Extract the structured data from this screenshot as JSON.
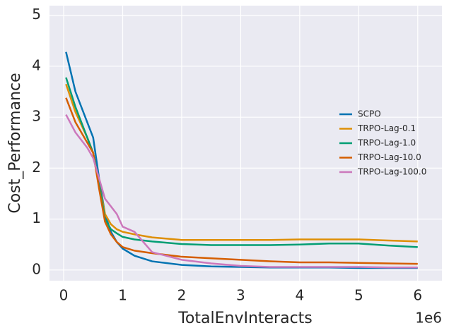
{
  "chart_data": {
    "type": "line",
    "xlabel": "TotalEnvInteracts",
    "ylabel": "Cost_Performance",
    "x_offset_label": "1e6",
    "x": [
      0.04,
      0.2,
      0.4,
      0.5,
      0.6,
      0.7,
      0.8,
      0.9,
      1.0,
      1.2,
      1.5,
      2,
      2.5,
      3,
      3.5,
      4,
      4.5,
      5,
      5.5,
      6
    ],
    "series": [
      {
        "name": "SCPO",
        "color": "#0173b2",
        "values": [
          4.28,
          3.5,
          2.9,
          2.6,
          1.8,
          1.1,
          0.75,
          0.55,
          0.42,
          0.28,
          0.17,
          0.1,
          0.07,
          0.06,
          0.05,
          0.05,
          0.05,
          0.04,
          0.04,
          0.04
        ]
      },
      {
        "name": "TRPO-Lag-0.1",
        "color": "#de8f05",
        "values": [
          3.65,
          3.1,
          2.6,
          2.3,
          1.7,
          1.1,
          0.9,
          0.8,
          0.75,
          0.7,
          0.64,
          0.59,
          0.59,
          0.59,
          0.59,
          0.6,
          0.6,
          0.6,
          0.58,
          0.56
        ]
      },
      {
        "name": "TRPO-Lag-1.0",
        "color": "#029e73",
        "values": [
          3.78,
          3.2,
          2.6,
          2.3,
          1.7,
          1.0,
          0.8,
          0.72,
          0.65,
          0.6,
          0.56,
          0.51,
          0.49,
          0.49,
          0.49,
          0.5,
          0.52,
          0.52,
          0.48,
          0.45
        ]
      },
      {
        "name": "TRPO-Lag-10.0",
        "color": "#d55e00",
        "values": [
          3.38,
          2.9,
          2.5,
          2.3,
          1.6,
          0.95,
          0.7,
          0.55,
          0.45,
          0.38,
          0.33,
          0.26,
          0.23,
          0.2,
          0.17,
          0.15,
          0.15,
          0.14,
          0.13,
          0.12
        ]
      },
      {
        "name": "TRPO-Lag-100.0",
        "color": "#cc78bc",
        "values": [
          3.05,
          2.7,
          2.4,
          2.2,
          1.8,
          1.4,
          1.25,
          1.1,
          0.85,
          0.75,
          0.35,
          0.2,
          0.13,
          0.08,
          0.06,
          0.06,
          0.06,
          0.06,
          0.05,
          0.05
        ]
      }
    ],
    "xlim": [
      -0.24,
      6.41
    ],
    "xticks": [
      0,
      1,
      2,
      3,
      4,
      5,
      6
    ],
    "ylim": [
      -0.21,
      5.19
    ],
    "yticks": [
      0,
      1,
      2,
      3,
      4,
      5
    ],
    "grid": true,
    "legend": "center right"
  }
}
